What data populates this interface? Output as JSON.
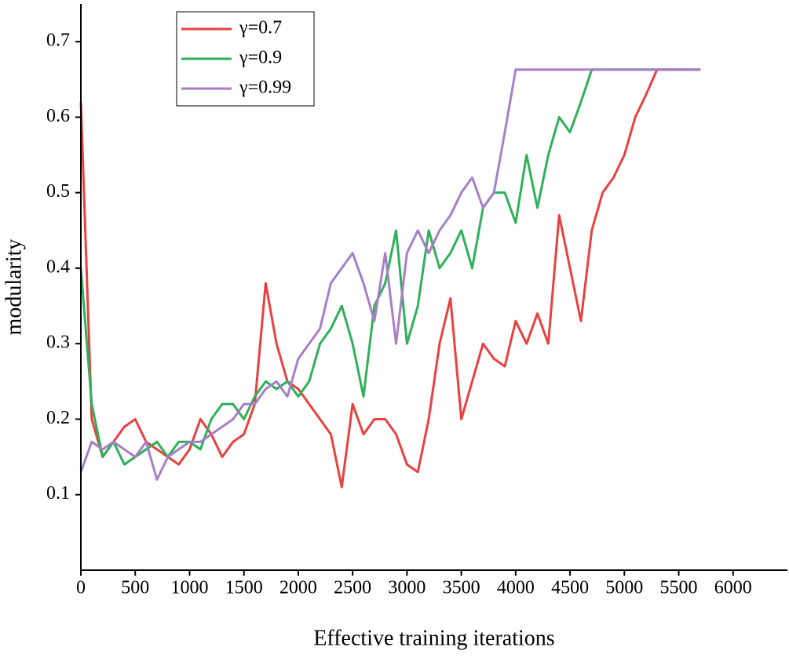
{
  "chart_data": {
    "type": "line",
    "xlabel": "Effective training iterations",
    "ylabel": "modularity",
    "x": [
      0,
      100,
      200,
      300,
      400,
      500,
      600,
      700,
      800,
      900,
      1000,
      1100,
      1200,
      1300,
      1400,
      1500,
      1600,
      1700,
      1800,
      1900,
      2000,
      2100,
      2200,
      2300,
      2400,
      2500,
      2600,
      2700,
      2800,
      2900,
      3000,
      3100,
      3200,
      3300,
      3400,
      3500,
      3600,
      3700,
      3800,
      3900,
      4000,
      4100,
      4200,
      4300,
      4400,
      4500,
      4600,
      4700,
      4800,
      4900,
      5000,
      5100,
      5200,
      5300,
      5400,
      5500,
      5600,
      5700
    ],
    "series": [
      {
        "name": "γ=0.7",
        "color": "#e8413f",
        "values": [
          0.62,
          0.2,
          0.15,
          0.17,
          0.19,
          0.2,
          0.17,
          0.16,
          0.15,
          0.14,
          0.16,
          0.2,
          0.18,
          0.15,
          0.17,
          0.18,
          0.22,
          0.38,
          0.3,
          0.25,
          0.24,
          0.22,
          0.2,
          0.18,
          0.11,
          0.22,
          0.18,
          0.2,
          0.2,
          0.18,
          0.14,
          0.13,
          0.2,
          0.3,
          0.36,
          0.2,
          0.25,
          0.3,
          0.28,
          0.27,
          0.33,
          0.3,
          0.34,
          0.3,
          0.47,
          0.4,
          0.33,
          0.45,
          0.5,
          0.52,
          0.55,
          0.6,
          0.63,
          0.663,
          0.663,
          0.663,
          0.663,
          0.663
        ]
      },
      {
        "name": "γ=0.9",
        "color": "#2fb05a",
        "values": [
          0.4,
          0.22,
          0.15,
          0.17,
          0.14,
          0.15,
          0.16,
          0.17,
          0.15,
          0.17,
          0.17,
          0.16,
          0.2,
          0.22,
          0.22,
          0.2,
          0.23,
          0.25,
          0.24,
          0.25,
          0.23,
          0.25,
          0.3,
          0.32,
          0.35,
          0.3,
          0.23,
          0.35,
          0.38,
          0.45,
          0.3,
          0.35,
          0.45,
          0.4,
          0.42,
          0.45,
          0.4,
          0.48,
          0.5,
          0.5,
          0.46,
          0.55,
          0.48,
          0.55,
          0.6,
          0.58,
          0.62,
          0.663,
          0.663,
          0.663,
          0.663,
          0.663,
          0.663,
          0.663,
          0.663,
          0.663,
          0.663,
          0.663
        ]
      },
      {
        "name": "γ=0.99",
        "color": "#a77fc6",
        "values": [
          0.13,
          0.17,
          0.16,
          0.17,
          0.16,
          0.15,
          0.17,
          0.12,
          0.15,
          0.16,
          0.17,
          0.17,
          0.18,
          0.19,
          0.2,
          0.22,
          0.22,
          0.24,
          0.25,
          0.23,
          0.28,
          0.3,
          0.32,
          0.38,
          0.4,
          0.42,
          0.38,
          0.33,
          0.42,
          0.3,
          0.42,
          0.45,
          0.42,
          0.45,
          0.47,
          0.5,
          0.52,
          0.48,
          0.5,
          0.58,
          0.663,
          0.663,
          0.663,
          0.663,
          0.663,
          0.663,
          0.663,
          0.663,
          0.663,
          0.663,
          0.663,
          0.663,
          0.663,
          0.663,
          0.663,
          0.663,
          0.663,
          0.663
        ]
      }
    ],
    "xlim": [
      0,
      6500
    ],
    "xticks": [
      0,
      500,
      1000,
      1500,
      2000,
      2500,
      3000,
      3500,
      4000,
      4500,
      5000,
      5500,
      6000
    ],
    "ylim": [
      0,
      0.75
    ],
    "yticks": [
      0.1,
      0.2,
      0.3,
      0.4,
      0.5,
      0.6,
      0.7
    ],
    "legend": "upper-left"
  }
}
